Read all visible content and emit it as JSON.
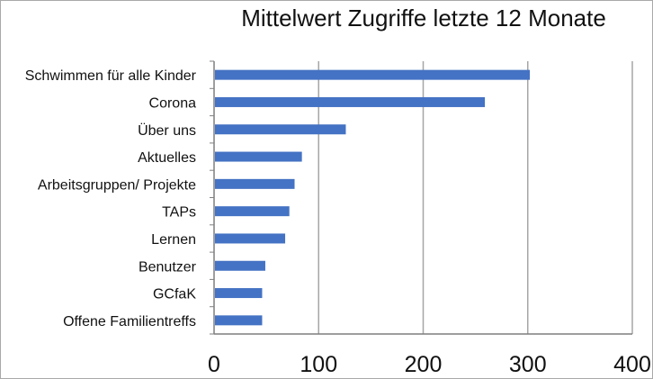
{
  "chart_data": {
    "type": "bar",
    "orientation": "horizontal",
    "title": "Mittelwert Zugriffe letzte 12 Monate",
    "xlabel": "",
    "ylabel": "",
    "categories": [
      "Schwimmen für alle Kinder",
      "Corona",
      "Über uns",
      "Aktuelles",
      "Arbeitsgruppen/ Projekte",
      "TAPs",
      "Lernen",
      "Benutzer",
      "GCfaK",
      "Offene Familientreffs"
    ],
    "values": [
      302,
      259,
      126,
      84,
      77,
      72,
      68,
      49,
      46,
      46
    ],
    "xlim": [
      0,
      400
    ],
    "ticks": [
      "0",
      "100",
      "200",
      "300",
      "400"
    ],
    "grid": "vertical",
    "legend": "none",
    "bar_color": "#4472c4",
    "grid_color": "#a6a6a6",
    "axis_color": "#7f7f7f"
  }
}
